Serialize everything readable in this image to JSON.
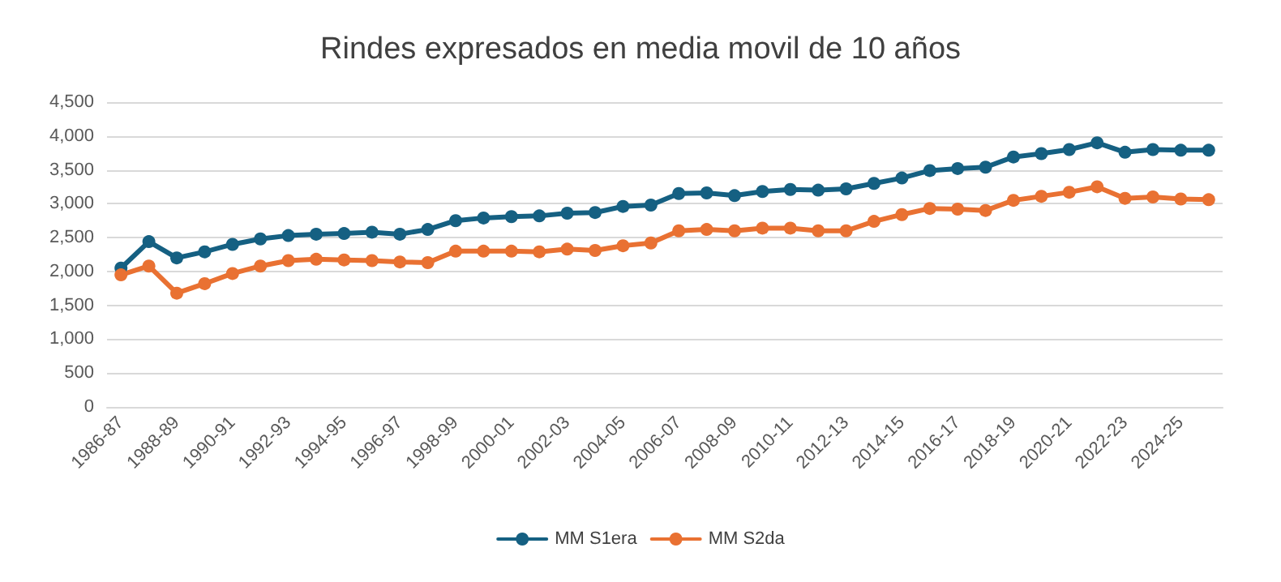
{
  "chart_data": {
    "type": "line",
    "title": "Rindes expresados en media movil de 10 años",
    "categories": [
      "1986-87",
      null,
      "1988-89",
      null,
      "1990-91",
      null,
      "1992-93",
      null,
      "1994-95",
      null,
      "1996-97",
      null,
      "1998-99",
      null,
      "2000-01",
      null,
      "2002-03",
      null,
      "2004-05",
      null,
      "2006-07",
      null,
      "2008-09",
      null,
      "2010-11",
      null,
      "2012-13",
      null,
      "2014-15",
      null,
      "2016-17",
      null,
      "2018-19",
      null,
      "2020-21",
      null,
      "2022-23",
      null,
      "2024-25",
      null
    ],
    "series": [
      {
        "name": "MM S1era",
        "color": "#156082",
        "values": [
          2050,
          2440,
          2200,
          2290,
          2400,
          2480,
          2530,
          2550,
          2560,
          2580,
          2550,
          2620,
          2750,
          2790,
          2810,
          2820,
          2860,
          2870,
          2960,
          2980,
          3150,
          3160,
          3120,
          3180,
          3210,
          3200,
          3220,
          3300,
          3380,
          3490,
          3520,
          3540,
          3690,
          3740,
          3800,
          3900,
          3760,
          3800,
          3790,
          3790
        ]
      },
      {
        "name": "MM S2da",
        "color": "#e97132",
        "values": [
          1950,
          2080,
          1680,
          1820,
          1970,
          2080,
          2160,
          2180,
          2170,
          2160,
          2140,
          2130,
          2300,
          2300,
          2300,
          2290,
          2330,
          2310,
          2380,
          2420,
          2600,
          2620,
          2600,
          2640,
          2640,
          2600,
          2600,
          2740,
          2840,
          2930,
          2920,
          2900,
          3050,
          3110,
          3170,
          3250,
          3080,
          3100,
          3070,
          3060
        ]
      }
    ],
    "ylim": [
      0,
      4500
    ],
    "yticks": [
      0,
      500,
      {
        "value": 1000,
        "label": "1,000"
      },
      {
        "value": 1500,
        "label": "1,500"
      },
      {
        "value": 2000,
        "label": "2,000"
      },
      {
        "value": 2500,
        "label": "2,500"
      },
      {
        "value": 3000,
        "label": "3,000"
      },
      {
        "value": 3500,
        "label": "3,500"
      },
      {
        "value": 4000,
        "label": "4,000"
      },
      {
        "value": 4500,
        "label": "4,500"
      }
    ],
    "grid": "y",
    "legend": "bottom",
    "marker": "circle",
    "line_style": "solid"
  }
}
